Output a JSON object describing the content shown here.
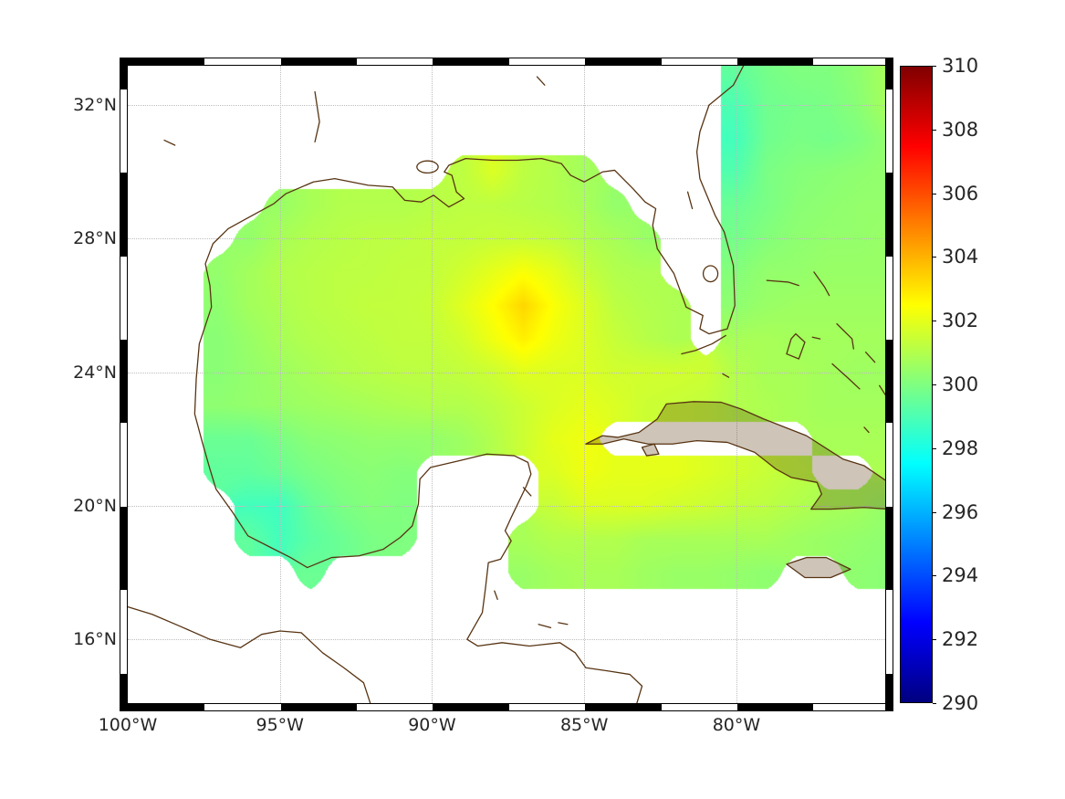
{
  "axes": {
    "x_ticks": [
      {
        "label": "100°W",
        "lon": -100
      },
      {
        "label": "95°W",
        "lon": -95
      },
      {
        "label": "90°W",
        "lon": -90
      },
      {
        "label": "85°W",
        "lon": -85
      },
      {
        "label": "80°W",
        "lon": -80
      }
    ],
    "y_ticks": [
      {
        "label": "16°N",
        "lat": 16
      },
      {
        "label": "20°N",
        "lat": 20
      },
      {
        "label": "24°N",
        "lat": 24
      },
      {
        "label": "28°N",
        "lat": 28
      },
      {
        "label": "32°N",
        "lat": 32
      }
    ],
    "lon_min": -100,
    "lon_max": -75.11,
    "lat_min": 14.09,
    "lat_max": 33.18
  },
  "colorbar": {
    "min": 290,
    "max": 310,
    "colormap": "jet",
    "tick_labels": [
      "290",
      "292",
      "294",
      "296",
      "298",
      "300",
      "302",
      "304",
      "306",
      "308",
      "310"
    ],
    "tick_values": [
      290,
      292,
      294,
      296,
      298,
      300,
      302,
      304,
      306,
      308,
      310
    ]
  },
  "colors": {
    "coastline": "#573413",
    "island_fill": "rgba(92,61,20,0.3)",
    "grid": "#bdbdbd",
    "frame": "#000000",
    "no_data": "#ffffff",
    "label": "#262626",
    "background": "#ffffff"
  },
  "chart_data": {
    "type": "heatmap",
    "title": "",
    "colormap": "jet",
    "value_range": [
      290,
      310
    ],
    "lon_range": [
      -100,
      -75.1
    ],
    "lat_range": [
      14.1,
      33.2
    ],
    "grid_step_deg": 1,
    "region": "Gulf of Mexico / NW Caribbean / W Atlantic",
    "lons": [
      -100,
      -99,
      -98,
      -97,
      -96,
      -95,
      -94,
      -93,
      -92,
      -91,
      -90,
      -89,
      -88,
      -87,
      -86,
      -85,
      -84,
      -83,
      -82,
      -81,
      -80,
      -79,
      -78,
      -77,
      -76,
      -75
    ],
    "lats": [
      33,
      32,
      31,
      30,
      29,
      28,
      27,
      26,
      25,
      24,
      23,
      22,
      21,
      20,
      19,
      18,
      17,
      16,
      15,
      14
    ],
    "values": [
      [
        null,
        null,
        null,
        null,
        null,
        null,
        null,
        null,
        null,
        null,
        null,
        null,
        null,
        null,
        null,
        null,
        null,
        null,
        null,
        null,
        299.4,
        299.8,
        300.0,
        300.0,
        300.3,
        300.8
      ],
      [
        null,
        null,
        null,
        null,
        null,
        null,
        null,
        null,
        null,
        null,
        null,
        null,
        null,
        null,
        null,
        null,
        null,
        null,
        null,
        null,
        299.0,
        299.7,
        299.8,
        299.9,
        300.2,
        300.8
      ],
      [
        null,
        null,
        null,
        null,
        null,
        null,
        null,
        null,
        null,
        null,
        null,
        null,
        null,
        null,
        null,
        null,
        null,
        null,
        null,
        null,
        298.8,
        299.7,
        299.9,
        299.8,
        300.0,
        300.4
      ],
      [
        null,
        null,
        null,
        null,
        null,
        null,
        null,
        null,
        null,
        null,
        null,
        301.2,
        301.8,
        301.2,
        301.0,
        300.7,
        null,
        null,
        null,
        null,
        299.1,
        299.9,
        300.1,
        300.2,
        300.3,
        300.4
      ],
      [
        null,
        null,
        null,
        null,
        null,
        300.5,
        300.8,
        301.0,
        301.0,
        301.0,
        301.1,
        301.2,
        301.2,
        301.1,
        301.0,
        300.8,
        300.4,
        null,
        null,
        null,
        299.6,
        299.9,
        300.2,
        300.3,
        300.4,
        300.4
      ],
      [
        null,
        null,
        null,
        null,
        300.4,
        300.8,
        301.0,
        301.1,
        301.2,
        301.2,
        301.3,
        301.3,
        301.4,
        301.4,
        301.3,
        301.0,
        300.8,
        300.5,
        null,
        null,
        299.8,
        300.1,
        300.3,
        300.4,
        300.4,
        300.5
      ],
      [
        null,
        null,
        null,
        300.4,
        300.7,
        301.0,
        301.1,
        301.2,
        301.2,
        301.3,
        301.3,
        301.6,
        302.0,
        302.4,
        302.0,
        301.4,
        301.0,
        300.9,
        null,
        null,
        300.1,
        300.4,
        300.4,
        300.5,
        300.5,
        300.5
      ],
      [
        null,
        null,
        null,
        300.3,
        300.7,
        300.9,
        301.1,
        301.2,
        301.3,
        301.3,
        301.4,
        301.9,
        302.5,
        303.3,
        302.4,
        301.8,
        301.2,
        301.0,
        300.9,
        null,
        300.3,
        300.5,
        300.6,
        300.6,
        300.6,
        300.6
      ],
      [
        null,
        null,
        null,
        300.2,
        300.5,
        300.8,
        301.0,
        301.1,
        301.2,
        301.3,
        301.3,
        301.6,
        302.2,
        302.8,
        302.2,
        301.8,
        301.4,
        301.1,
        300.9,
        null,
        300.8,
        300.8,
        300.7,
        300.7,
        300.7,
        300.7
      ],
      [
        null,
        null,
        null,
        300.2,
        300.4,
        300.6,
        300.8,
        301.0,
        301.1,
        301.2,
        301.2,
        301.3,
        301.5,
        301.9,
        301.8,
        301.8,
        301.6,
        301.6,
        301.6,
        301.5,
        301.0,
        300.8,
        300.8,
        300.7,
        300.6,
        300.6
      ],
      [
        null,
        null,
        null,
        300.3,
        300.4,
        300.5,
        300.6,
        300.7,
        300.8,
        300.9,
        301.0,
        301.0,
        301.2,
        301.5,
        301.8,
        302.0,
        301.8,
        301.5,
        301.4,
        301.3,
        301.0,
        300.9,
        300.8,
        300.7,
        300.7,
        300.7
      ],
      [
        null,
        null,
        null,
        299.6,
        299.6,
        299.9,
        300.2,
        300.3,
        300.4,
        300.4,
        300.4,
        300.6,
        301.0,
        301.5,
        302.0,
        302.2,
        null,
        null,
        null,
        null,
        null,
        null,
        null,
        300.8,
        300.8,
        300.8
      ],
      [
        null,
        null,
        null,
        299.4,
        299.4,
        299.6,
        299.9,
        300.1,
        300.2,
        300.1,
        null,
        null,
        null,
        null,
        301.8,
        302.2,
        302.0,
        302.0,
        302.0,
        301.8,
        301.6,
        301.4,
        301.2,
        null,
        null,
        300.9
      ],
      [
        null,
        null,
        null,
        null,
        298.8,
        298.7,
        299.5,
        299.9,
        300.1,
        300.0,
        null,
        null,
        null,
        null,
        301.4,
        301.8,
        301.8,
        301.8,
        301.6,
        301.5,
        301.3,
        301.2,
        301.0,
        300.8,
        300.7,
        300.4
      ],
      [
        null,
        null,
        null,
        null,
        299.4,
        298.8,
        299.3,
        299.6,
        299.9,
        300.0,
        null,
        null,
        null,
        300.8,
        301.0,
        301.0,
        301.0,
        300.8,
        300.8,
        300.8,
        300.8,
        300.8,
        300.6,
        300.5,
        300.4,
        300.3
      ],
      [
        null,
        null,
        null,
        null,
        null,
        null,
        299.6,
        null,
        null,
        null,
        null,
        null,
        null,
        300.5,
        300.7,
        300.8,
        300.8,
        300.6,
        300.5,
        300.5,
        300.4,
        300.3,
        null,
        null,
        300.3,
        300.2
      ],
      [
        null,
        null,
        null,
        null,
        null,
        null,
        null,
        null,
        null,
        null,
        null,
        null,
        null,
        null,
        null,
        null,
        null,
        null,
        null,
        null,
        null,
        null,
        null,
        null,
        null,
        null
      ],
      [
        null,
        null,
        null,
        null,
        null,
        null,
        null,
        null,
        null,
        null,
        null,
        null,
        null,
        null,
        null,
        null,
        null,
        null,
        null,
        null,
        null,
        null,
        null,
        null,
        null,
        null
      ],
      [
        null,
        null,
        null,
        null,
        null,
        null,
        null,
        null,
        null,
        null,
        null,
        null,
        null,
        null,
        null,
        null,
        null,
        null,
        null,
        null,
        null,
        null,
        null,
        null,
        null,
        null
      ],
      [
        null,
        null,
        null,
        null,
        null,
        null,
        null,
        null,
        null,
        null,
        null,
        null,
        null,
        null,
        null,
        null,
        null,
        null,
        null,
        null,
        null,
        null,
        null,
        null,
        null,
        null
      ]
    ]
  }
}
